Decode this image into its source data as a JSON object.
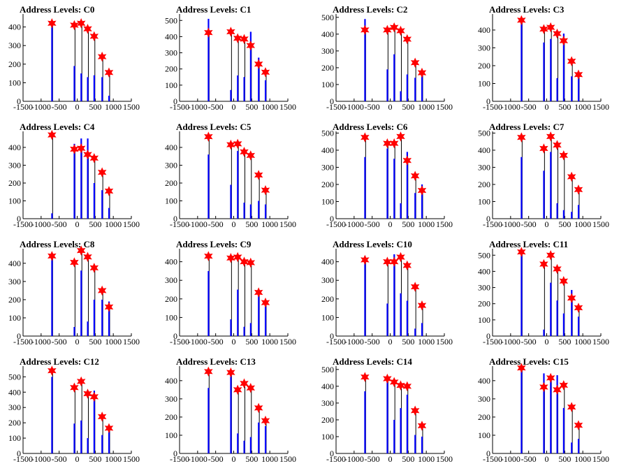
{
  "title_prefix": "Address Levels: ",
  "colors": {
    "bar": "#0000ff",
    "star": "#ff0000",
    "axis": "#000000"
  },
  "x_ticks": [
    -1500,
    -1000,
    -500,
    0,
    500,
    1000,
    1500
  ],
  "peak_x": [
    -700,
    -80,
    110,
    290,
    470,
    690,
    880
  ],
  "chart_data": [
    {
      "type": "bar",
      "title": "Address Levels: C0",
      "xlim": [
        -1500,
        1500
      ],
      "ylim": [
        0,
        470
      ],
      "y_ticks": [
        0,
        100,
        200,
        300,
        400
      ],
      "stars": [
        420,
        410,
        420,
        390,
        350,
        240,
        155
      ],
      "bars": [
        420,
        190,
        150,
        130,
        140,
        130,
        30
      ]
    },
    {
      "type": "bar",
      "title": "Address Levels: C1",
      "xlim": [
        -1500,
        1500
      ],
      "ylim": [
        0,
        540
      ],
      "y_ticks": [
        0,
        100,
        200,
        300,
        400,
        500
      ],
      "stars": [
        425,
        430,
        390,
        385,
        345,
        230,
        180
      ],
      "bars": [
        510,
        70,
        160,
        150,
        430,
        270,
        130
      ]
    },
    {
      "type": "bar",
      "title": "Address Levels: C2",
      "xlim": [
        -1500,
        1500
      ],
      "ylim": [
        0,
        520
      ],
      "y_ticks": [
        0,
        100,
        200,
        300,
        400,
        500
      ],
      "stars": [
        425,
        425,
        440,
        420,
        370,
        230,
        170
      ],
      "bars": [
        490,
        190,
        280,
        60,
        160,
        140,
        160
      ]
    },
    {
      "type": "bar",
      "title": "Address Levels: C3",
      "xlim": [
        -1500,
        1500
      ],
      "ylim": [
        0,
        490
      ],
      "y_ticks": [
        0,
        100,
        200,
        300,
        400
      ],
      "stars": [
        455,
        405,
        415,
        380,
        340,
        225,
        150
      ],
      "bars": [
        470,
        330,
        350,
        130,
        380,
        140,
        140
      ]
    },
    {
      "type": "bar",
      "title": "Address Levels: C4",
      "xlim": [
        -1500,
        1500
      ],
      "ylim": [
        0,
        490
      ],
      "y_ticks": [
        0,
        100,
        200,
        300,
        400
      ],
      "stars": [
        470,
        390,
        395,
        360,
        340,
        260,
        155
      ],
      "bars": [
        30,
        420,
        450,
        450,
        200,
        160,
        60
      ]
    },
    {
      "type": "bar",
      "title": "Address Levels: C5",
      "xlim": [
        -1500,
        1500
      ],
      "ylim": [
        0,
        490
      ],
      "y_ticks": [
        0,
        100,
        200,
        300,
        400
      ],
      "stars": [
        460,
        415,
        420,
        375,
        355,
        245,
        160
      ],
      "bars": [
        360,
        190,
        380,
        90,
        80,
        100,
        80
      ]
    },
    {
      "type": "bar",
      "title": "Address Levels: C6",
      "xlim": [
        -1500,
        1500
      ],
      "ylim": [
        0,
        510
      ],
      "y_ticks": [
        0,
        100,
        200,
        300,
        400,
        500
      ],
      "stars": [
        475,
        440,
        440,
        480,
        340,
        250,
        165
      ],
      "bars": [
        360,
        410,
        350,
        90,
        390,
        150,
        200
      ]
    },
    {
      "type": "bar",
      "title": "Address Levels: C7",
      "xlim": [
        -1500,
        1500
      ],
      "ylim": [
        0,
        510
      ],
      "y_ticks": [
        0,
        100,
        200,
        300,
        400,
        500
      ],
      "stars": [
        475,
        410,
        480,
        430,
        370,
        245,
        170
      ],
      "bars": [
        360,
        280,
        390,
        90,
        50,
        40,
        80
      ]
    },
    {
      "type": "bar",
      "title": "Address Levels: C8",
      "xlim": [
        -1500,
        1500
      ],
      "ylim": [
        0,
        480
      ],
      "y_ticks": [
        0,
        100,
        200,
        300,
        400
      ],
      "stars": [
        440,
        405,
        470,
        435,
        375,
        250,
        160
      ],
      "bars": [
        440,
        50,
        360,
        80,
        200,
        200,
        190
      ]
    },
    {
      "type": "bar",
      "title": "Address Levels: C9",
      "xlim": [
        -1500,
        1500
      ],
      "ylim": [
        0,
        470
      ],
      "y_ticks": [
        0,
        100,
        200,
        300,
        400
      ],
      "stars": [
        430,
        420,
        425,
        400,
        395,
        235,
        180
      ],
      "bars": [
        350,
        90,
        250,
        50,
        70,
        230,
        170
      ]
    },
    {
      "type": "bar",
      "title": "Address Levels: C10",
      "xlim": [
        -1500,
        1500
      ],
      "ylim": [
        0,
        470
      ],
      "y_ticks": [
        0,
        100,
        200,
        300,
        400
      ],
      "stars": [
        410,
        400,
        400,
        425,
        380,
        265,
        165
      ],
      "bars": [
        430,
        175,
        440,
        230,
        190,
        40,
        70
      ]
    },
    {
      "type": "bar",
      "title": "Address Levels: C11",
      "xlim": [
        -1500,
        1500
      ],
      "ylim": [
        0,
        540
      ],
      "y_ticks": [
        0,
        100,
        200,
        300,
        400,
        500
      ],
      "stars": [
        520,
        445,
        500,
        415,
        340,
        235,
        175
      ],
      "bars": [
        500,
        40,
        330,
        220,
        140,
        285,
        120
      ]
    },
    {
      "type": "bar",
      "title": "Address Levels: C12",
      "xlim": [
        -1500,
        1500
      ],
      "ylim": [
        0,
        570
      ],
      "y_ticks": [
        0,
        100,
        200,
        300,
        400,
        500
      ],
      "stars": [
        540,
        430,
        470,
        390,
        370,
        240,
        165
      ],
      "bars": [
        500,
        195,
        215,
        100,
        410,
        120,
        140
      ]
    },
    {
      "type": "bar",
      "title": "Address Levels: C13",
      "xlim": [
        -1500,
        1500
      ],
      "ylim": [
        0,
        480
      ],
      "y_ticks": [
        0,
        100,
        200,
        300,
        400
      ],
      "stars": [
        450,
        445,
        350,
        385,
        360,
        250,
        180
      ],
      "bars": [
        360,
        430,
        110,
        70,
        90,
        170,
        150
      ]
    },
    {
      "type": "bar",
      "title": "Address Levels: C14",
      "xlim": [
        -1500,
        1500
      ],
      "ylim": [
        0,
        520
      ],
      "y_ticks": [
        0,
        100,
        200,
        300,
        400,
        500
      ],
      "stars": [
        455,
        445,
        425,
        405,
        400,
        255,
        165
      ],
      "bars": [
        370,
        430,
        200,
        270,
        350,
        110,
        100
      ]
    },
    {
      "type": "bar",
      "title": "Address Levels: C15",
      "xlim": [
        -1500,
        1500
      ],
      "ylim": [
        0,
        480
      ],
      "y_ticks": [
        0,
        100,
        200,
        300,
        400
      ],
      "stars": [
        470,
        365,
        415,
        350,
        375,
        255,
        155
      ],
      "bars": [
        470,
        440,
        430,
        430,
        250,
        60,
        80
      ]
    }
  ]
}
